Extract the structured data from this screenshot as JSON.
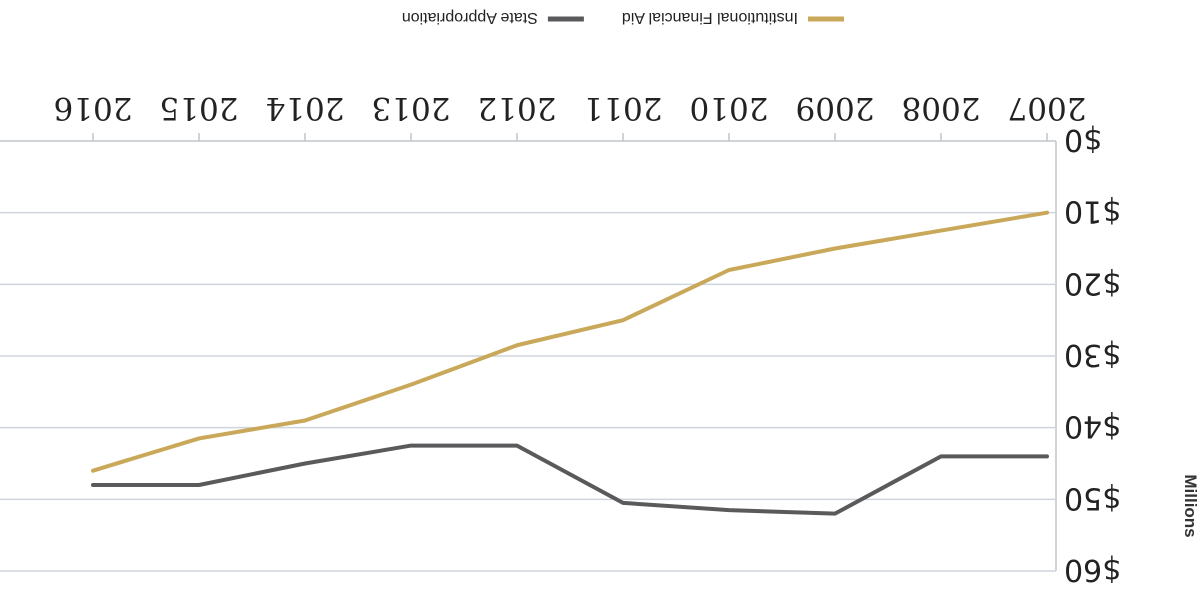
{
  "chart_data": {
    "type": "line",
    "categories": [
      "2007",
      "2008",
      "2009",
      "2010",
      "2011",
      "2012",
      "2013",
      "2014",
      "2015",
      "2016"
    ],
    "series": [
      {
        "name": "State Appropriation",
        "color": "#5a5a5c",
        "values": [
          44,
          44,
          52,
          51.5,
          50.5,
          42.5,
          42.5,
          45,
          48,
          48
        ]
      },
      {
        "name": "Institutional Financial Aid",
        "color": "#c9a85a",
        "values": [
          10,
          12.5,
          15,
          18,
          25,
          28.5,
          34,
          39,
          41.5,
          46
        ]
      }
    ],
    "y_ticks": [
      "$0",
      "$10",
      "$20",
      "$30",
      "$40",
      "$50",
      "$60"
    ],
    "ylim": [
      0,
      60
    ],
    "ylabel": "Millions",
    "grid": true,
    "legend_position": "top",
    "orientation": "rotated 180 degrees"
  }
}
